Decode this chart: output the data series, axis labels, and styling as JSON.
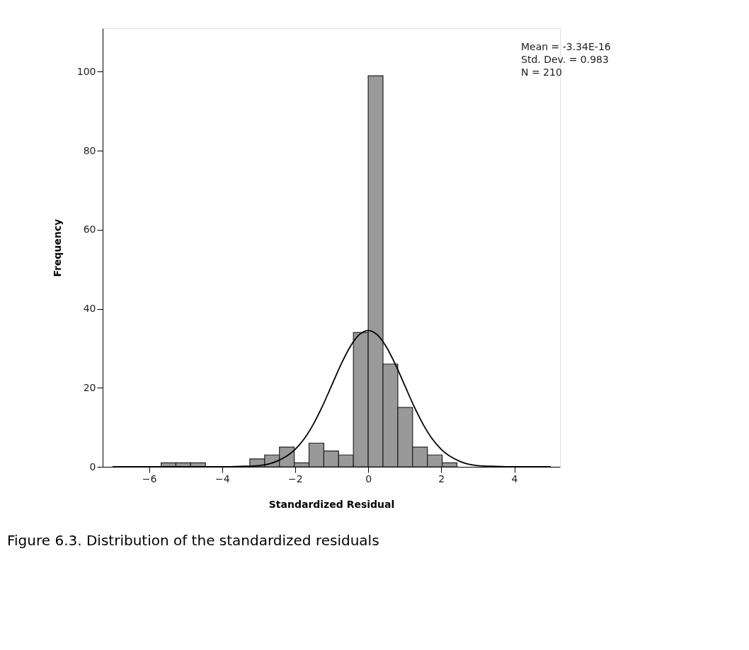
{
  "chart_data": {
    "type": "histogram",
    "xlabel": "Standardized Residual",
    "ylabel": "Frequency",
    "bins": [
      -5.67,
      -5.265,
      -4.86,
      -4.455,
      -4.05,
      -3.645,
      -3.24,
      -2.835,
      -2.43,
      -2.025,
      -1.62,
      -1.215,
      -0.81,
      -0.405,
      0,
      0.405,
      0.81,
      1.215,
      1.62,
      2.025,
      2.43
    ],
    "values": [
      1,
      1,
      1,
      0,
      0,
      0,
      2,
      3,
      5,
      1,
      6,
      4,
      3,
      34,
      99,
      26,
      15,
      5,
      3,
      1
    ],
    "color": "#999999",
    "series": [
      {
        "type": "line",
        "color": "#000000",
        "x": [
          -7,
          -5,
          -4,
          -3.5,
          -3,
          -2.5,
          -2,
          -1.75,
          -1.5,
          -1.25,
          -1,
          -0.75,
          -0.5,
          -0.25,
          0,
          0.25,
          0.5,
          0.75,
          1,
          1.25,
          1.5,
          1.75,
          2,
          2.5,
          3,
          3.5,
          4,
          5
        ],
        "values": [
          0,
          0,
          0,
          0.1,
          0.3,
          1.4,
          4.4,
          7.1,
          10.8,
          15.4,
          20.6,
          25.8,
          30.3,
          33.4,
          34.5,
          33.4,
          30.3,
          25.8,
          20.6,
          15.4,
          10.8,
          7.1,
          4.4,
          1.4,
          0.3,
          0.1,
          0,
          0
        ]
      }
    ],
    "xlim": [
      -7.27,
      5.25
    ],
    "xticks": [
      -6,
      -4,
      -2,
      0,
      2,
      4
    ],
    "ylim": [
      0,
      111
    ],
    "yticks": [
      0,
      20,
      40,
      60,
      80,
      100
    ],
    "grid": false,
    "annotations": [
      "Mean = -3.34E-16\nStd. Dev. = 0.983\nN = 210",
      "Figure 6.3. Distribution of the standardized residuals"
    ]
  }
}
